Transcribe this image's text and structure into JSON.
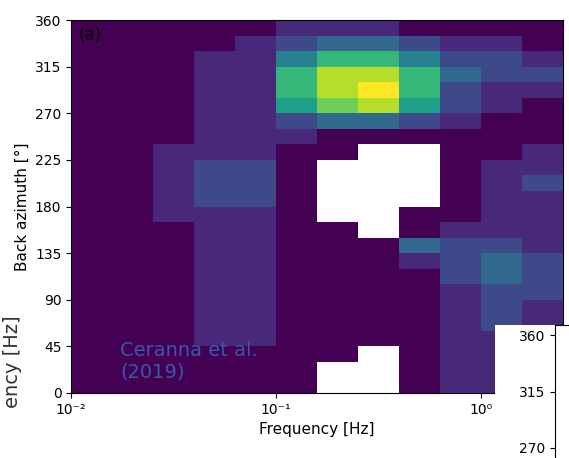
{
  "chart_data": [
    {
      "type": "heatmap",
      "panel_label": "(a)",
      "annotation": "Ceranna et al.\n(2019)",
      "xlabel": "Frequency [Hz]",
      "ylabel": "Back azimuth [°]",
      "log": "x",
      "xlim": [
        0.01,
        2.512
      ],
      "xticks": [
        {
          "value": 0.01,
          "label": "10⁻²"
        },
        {
          "value": 0.1,
          "label": "10⁻¹"
        },
        {
          "value": 1,
          "label": "10⁰"
        }
      ],
      "ylim": [
        0,
        360
      ],
      "yticks": [
        0,
        45,
        90,
        135,
        180,
        225,
        270,
        315,
        360
      ],
      "x_edges": [
        0.01,
        0.0158,
        0.0251,
        0.0398,
        0.0631,
        0.1,
        0.158,
        0.251,
        0.398,
        0.631,
        1,
        1.585,
        2.512
      ],
      "y_edges": [
        0,
        15,
        30,
        45,
        60,
        75,
        90,
        105,
        120,
        135,
        150,
        165,
        180,
        195,
        210,
        225,
        240,
        255,
        270,
        285,
        300,
        315,
        330,
        345,
        360
      ],
      "cells": [
        [
          1,
          1,
          1,
          1,
          1,
          1,
          0,
          0,
          1,
          2,
          2,
          2
        ],
        [
          1,
          1,
          1,
          1,
          1,
          1,
          0,
          0,
          1,
          2,
          2,
          2
        ],
        [
          1,
          1,
          1,
          1,
          1,
          1,
          1,
          0,
          1,
          2,
          2,
          2
        ],
        [
          1,
          1,
          1,
          2,
          2,
          1,
          1,
          1,
          1,
          2,
          2,
          2
        ],
        [
          1,
          1,
          1,
          2,
          2,
          1,
          1,
          1,
          1,
          2,
          3,
          2
        ],
        [
          1,
          1,
          1,
          2,
          2,
          1,
          1,
          1,
          1,
          2,
          3,
          2
        ],
        [
          1,
          1,
          1,
          2,
          2,
          1,
          1,
          1,
          1,
          2,
          3,
          3
        ],
        [
          1,
          1,
          1,
          2,
          2,
          1,
          1,
          1,
          1,
          3,
          4,
          3
        ],
        [
          1,
          1,
          1,
          2,
          2,
          1,
          1,
          1,
          2,
          3,
          4,
          3
        ],
        [
          1,
          1,
          1,
          2,
          2,
          1,
          1,
          1,
          4,
          3,
          3,
          2
        ],
        [
          1,
          1,
          1,
          2,
          2,
          1,
          1,
          0,
          1,
          2,
          2,
          2
        ],
        [
          1,
          1,
          2,
          2,
          2,
          1,
          0,
          0,
          1,
          1,
          2,
          2
        ],
        [
          1,
          1,
          2,
          3,
          3,
          1,
          0,
          0,
          0,
          1,
          2,
          2
        ],
        [
          1,
          1,
          2,
          3,
          3,
          1,
          0,
          0,
          0,
          1,
          2,
          3
        ],
        [
          1,
          1,
          2,
          3,
          3,
          1,
          0,
          0,
          0,
          1,
          2,
          2
        ],
        [
          1,
          1,
          2,
          2,
          2,
          1,
          1,
          0,
          0,
          1,
          1,
          2
        ],
        [
          1,
          1,
          1,
          2,
          2,
          2,
          1,
          1,
          1,
          1,
          1,
          1
        ],
        [
          1,
          1,
          1,
          2,
          2,
          3,
          4,
          4,
          3,
          2,
          1,
          1
        ],
        [
          1,
          1,
          1,
          2,
          2,
          6,
          8,
          9,
          6,
          3,
          2,
          1
        ],
        [
          1,
          1,
          1,
          2,
          2,
          7,
          9,
          10,
          7,
          3,
          2,
          2
        ],
        [
          1,
          1,
          1,
          2,
          2,
          7,
          9,
          9,
          7,
          4,
          3,
          3
        ],
        [
          1,
          1,
          1,
          2,
          2,
          5,
          7,
          7,
          5,
          3,
          3,
          2
        ],
        [
          1,
          1,
          1,
          1,
          2,
          3,
          4,
          4,
          3,
          2,
          2,
          1
        ],
        [
          1,
          1,
          1,
          1,
          1,
          2,
          2,
          2,
          1,
          1,
          1,
          1
        ]
      ]
    },
    {
      "type": "fragment",
      "ylim": [
        262,
        368
      ],
      "yticks": [
        270,
        315,
        360
      ]
    }
  ],
  "side_label": "ency [Hz]"
}
